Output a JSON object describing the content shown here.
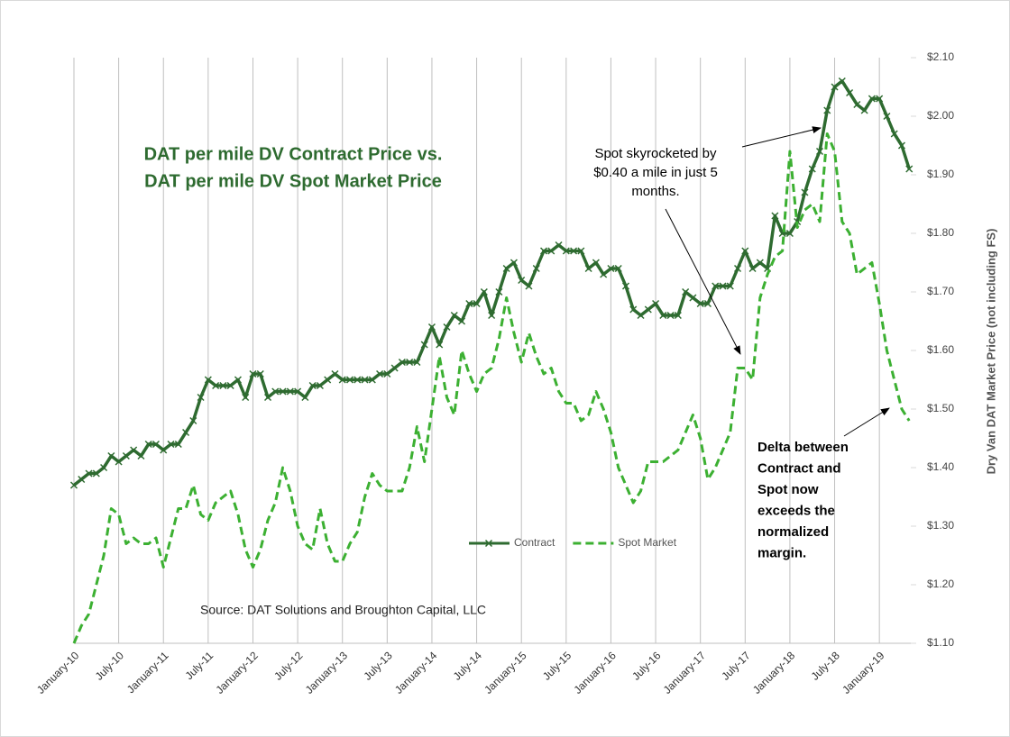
{
  "chart_data": {
    "type": "line",
    "title": [
      "DAT per mile DV Contract Price vs.",
      "DAT per mile DV Spot Market Price"
    ],
    "y_axis_label": "Dry Van DAT Market Price (not including FS)",
    "y_axis_side": "right",
    "source": "Source: DAT Solutions and Broughton Capital, LLC",
    "annotations": [
      {
        "lines": [
          "Spot skyrocketed by",
          "$0.40  a mile in just 5",
          "months."
        ],
        "bold": false
      },
      {
        "lines": [
          "Delta between",
          "Contract and",
          "Spot now",
          "exceeds the",
          "normalized",
          "margin."
        ],
        "bold": true
      }
    ],
    "categories": [
      "January-10",
      null,
      null,
      null,
      null,
      null,
      "July-10",
      null,
      null,
      null,
      null,
      null,
      "January-11",
      null,
      null,
      null,
      null,
      null,
      "July-11",
      null,
      null,
      null,
      null,
      null,
      "January-12",
      null,
      null,
      null,
      null,
      null,
      "July-12",
      null,
      null,
      null,
      null,
      null,
      "January-13",
      null,
      null,
      null,
      null,
      null,
      "July-13",
      null,
      null,
      null,
      null,
      null,
      "January-14",
      null,
      null,
      null,
      null,
      null,
      "July-14",
      null,
      null,
      null,
      null,
      null,
      "January-15",
      null,
      null,
      null,
      null,
      null,
      "July-15",
      null,
      null,
      null,
      null,
      null,
      "January-16",
      null,
      null,
      null,
      null,
      null,
      "July-16",
      null,
      null,
      null,
      null,
      null,
      "January-17",
      null,
      null,
      null,
      null,
      null,
      "July-17",
      null,
      null,
      null,
      null,
      null,
      "January-18",
      null,
      null,
      null,
      null,
      null,
      "July-18",
      null,
      null,
      null,
      null,
      null,
      "January-19",
      null,
      null,
      null,
      null
    ],
    "series": [
      {
        "name": "Contract",
        "color": "#2e6b30",
        "dashed": false,
        "marker": "x",
        "values": [
          1.37,
          1.38,
          1.39,
          1.39,
          1.4,
          1.42,
          1.41,
          1.42,
          1.43,
          1.42,
          1.44,
          1.44,
          1.43,
          1.44,
          1.44,
          1.46,
          1.48,
          1.52,
          1.55,
          1.54,
          1.54,
          1.54,
          1.55,
          1.52,
          1.56,
          1.56,
          1.52,
          1.53,
          1.53,
          1.53,
          1.53,
          1.52,
          1.54,
          1.54,
          1.55,
          1.56,
          1.55,
          1.55,
          1.55,
          1.55,
          1.55,
          1.56,
          1.56,
          1.57,
          1.58,
          1.58,
          1.58,
          1.61,
          1.64,
          1.61,
          1.64,
          1.66,
          1.65,
          1.68,
          1.68,
          1.7,
          1.66,
          1.7,
          1.74,
          1.75,
          1.72,
          1.71,
          1.74,
          1.77,
          1.77,
          1.78,
          1.77,
          1.77,
          1.77,
          1.74,
          1.75,
          1.73,
          1.74,
          1.74,
          1.71,
          1.67,
          1.66,
          1.67,
          1.68,
          1.66,
          1.66,
          1.66,
          1.7,
          1.69,
          1.68,
          1.68,
          1.71,
          1.71,
          1.71,
          1.74,
          1.77,
          1.74,
          1.75,
          1.74,
          1.83,
          1.8,
          1.8,
          1.82,
          1.87,
          1.91,
          1.94,
          2.01,
          2.05,
          2.06,
          2.04,
          2.02,
          2.01,
          2.03,
          2.03,
          2.0,
          1.97,
          1.95,
          1.91
        ]
      },
      {
        "name": "Spot Market",
        "color": "#3cb032",
        "dashed": true,
        "values": [
          1.1,
          1.13,
          1.15,
          1.2,
          1.25,
          1.33,
          1.32,
          1.27,
          1.28,
          1.27,
          1.27,
          1.28,
          1.23,
          1.28,
          1.33,
          1.33,
          1.37,
          1.32,
          1.31,
          1.34,
          1.35,
          1.36,
          1.32,
          1.26,
          1.23,
          1.26,
          1.31,
          1.34,
          1.4,
          1.36,
          1.3,
          1.27,
          1.26,
          1.33,
          1.27,
          1.24,
          1.24,
          1.27,
          1.29,
          1.35,
          1.39,
          1.37,
          1.36,
          1.36,
          1.36,
          1.4,
          1.47,
          1.41,
          1.5,
          1.59,
          1.52,
          1.49,
          1.6,
          1.56,
          1.53,
          1.56,
          1.57,
          1.62,
          1.69,
          1.63,
          1.58,
          1.63,
          1.59,
          1.56,
          1.57,
          1.53,
          1.51,
          1.51,
          1.48,
          1.49,
          1.53,
          1.5,
          1.46,
          1.4,
          1.37,
          1.34,
          1.36,
          1.41,
          1.41,
          1.41,
          1.42,
          1.43,
          1.46,
          1.49,
          1.45,
          1.38,
          1.4,
          1.43,
          1.46,
          1.57,
          1.57,
          1.55,
          1.69,
          1.73,
          1.76,
          1.77,
          1.94,
          1.81,
          1.84,
          1.85,
          1.82,
          1.97,
          1.94,
          1.82,
          1.8,
          1.73,
          1.74,
          1.75,
          1.68,
          1.6,
          1.55,
          1.5,
          1.48
        ]
      }
    ],
    "ylim": [
      1.1,
      2.1
    ],
    "yticks": [
      {
        "value": 1.1,
        "label": "$1.10"
      },
      {
        "value": 1.2,
        "label": "$1.20"
      },
      {
        "value": 1.3,
        "label": "$1.30"
      },
      {
        "value": 1.4,
        "label": "$1.40"
      },
      {
        "value": 1.5,
        "label": "$1.50"
      },
      {
        "value": 1.6,
        "label": "$1.60"
      },
      {
        "value": 1.7,
        "label": "$1.70"
      },
      {
        "value": 1.8,
        "label": "$1.80"
      },
      {
        "value": 1.9,
        "label": "$1.90"
      },
      {
        "value": 2.0,
        "label": "$2.00"
      },
      {
        "value": 2.1,
        "label": "$2.10"
      }
    ],
    "x_grid": true,
    "legend_loc": "center"
  }
}
